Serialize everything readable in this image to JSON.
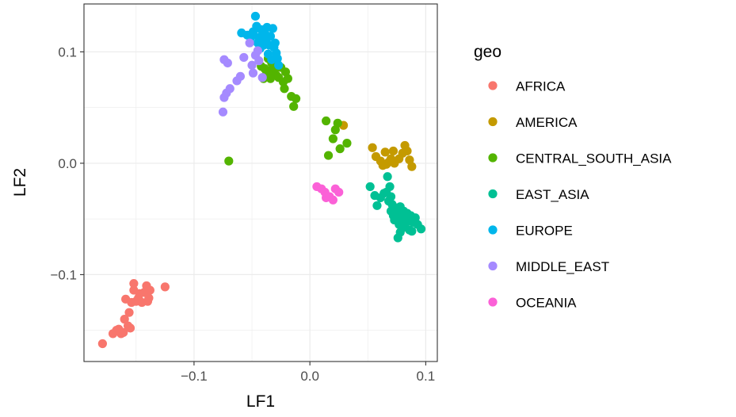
{
  "chart_data": {
    "type": "scatter",
    "title": "",
    "xlabel": "LF1",
    "ylabel": "LF2",
    "xlim": [
      -0.195,
      0.11
    ],
    "ylim": [
      -0.178,
      0.143
    ],
    "xticks": [
      -0.1,
      0.0,
      0.1
    ],
    "xtick_labels": [
      "−0.1",
      "0.0",
      "0.1"
    ],
    "yticks": [
      -0.1,
      0.0,
      0.1
    ],
    "ytick_labels": [
      "−0.1",
      "0.0",
      "0.1"
    ],
    "grid": true,
    "legend": {
      "title": "geo",
      "placement": "right"
    },
    "series": [
      {
        "name": "AFRICA",
        "color": "#F8766D",
        "points": [
          [
            -0.179,
            -0.162
          ],
          [
            -0.17,
            -0.153
          ],
          [
            -0.167,
            -0.15
          ],
          [
            -0.165,
            -0.149
          ],
          [
            -0.163,
            -0.153
          ],
          [
            -0.161,
            -0.152
          ],
          [
            -0.16,
            -0.14
          ],
          [
            -0.157,
            -0.146
          ],
          [
            -0.155,
            -0.148
          ],
          [
            -0.156,
            -0.134
          ],
          [
            -0.154,
            -0.125
          ],
          [
            -0.15,
            -0.124
          ],
          [
            -0.152,
            -0.114
          ],
          [
            -0.148,
            -0.121
          ],
          [
            -0.147,
            -0.117
          ],
          [
            -0.145,
            -0.125
          ],
          [
            -0.143,
            -0.116
          ],
          [
            -0.14,
            -0.124
          ],
          [
            -0.139,
            -0.121
          ],
          [
            -0.138,
            -0.114
          ],
          [
            -0.152,
            -0.108
          ],
          [
            -0.141,
            -0.11
          ],
          [
            -0.125,
            -0.111
          ],
          [
            -0.159,
            -0.122
          ]
        ]
      },
      {
        "name": "AMERICA",
        "color": "#C49A00",
        "points": [
          [
            0.029,
            0.034
          ],
          [
            0.054,
            0.014
          ],
          [
            0.057,
            0.006
          ],
          [
            0.061,
            0.002
          ],
          [
            0.063,
            -0.002
          ],
          [
            0.066,
            -0.001
          ],
          [
            0.068,
            0.001
          ],
          [
            0.07,
            0.004
          ],
          [
            0.073,
            0.0
          ],
          [
            0.072,
            0.011
          ],
          [
            0.077,
            0.004
          ],
          [
            0.08,
            0.009
          ],
          [
            0.082,
            0.016
          ],
          [
            0.084,
            0.011
          ],
          [
            0.086,
            0.003
          ],
          [
            0.088,
            -0.003
          ],
          [
            0.065,
            0.01
          ]
        ]
      },
      {
        "name": "CENTRAL_SOUTH_ASIA",
        "color": "#53B400",
        "points": [
          [
            -0.07,
            0.002
          ],
          [
            -0.042,
            0.087
          ],
          [
            -0.04,
            0.076
          ],
          [
            -0.038,
            0.079
          ],
          [
            -0.036,
            0.094
          ],
          [
            -0.035,
            0.083
          ],
          [
            -0.033,
            0.09
          ],
          [
            -0.031,
            0.081
          ],
          [
            -0.029,
            0.079
          ],
          [
            -0.027,
            0.077
          ],
          [
            -0.025,
            0.086
          ],
          [
            -0.023,
            0.073
          ],
          [
            -0.022,
            0.067
          ],
          [
            -0.021,
            0.082
          ],
          [
            -0.019,
            0.076
          ],
          [
            -0.016,
            0.06
          ],
          [
            -0.014,
            0.051
          ],
          [
            -0.012,
            0.058
          ],
          [
            0.014,
            0.038
          ],
          [
            0.016,
            0.007
          ],
          [
            0.02,
            0.022
          ],
          [
            0.022,
            0.03
          ],
          [
            0.024,
            0.036
          ],
          [
            0.026,
            0.013
          ],
          [
            0.032,
            0.018
          ],
          [
            -0.039,
            0.085
          ],
          [
            -0.03,
            0.085
          ],
          [
            -0.034,
            0.076
          ]
        ]
      },
      {
        "name": "EAST_ASIA",
        "color": "#00C094",
        "points": [
          [
            0.052,
            -0.021
          ],
          [
            0.056,
            -0.029
          ],
          [
            0.058,
            -0.038
          ],
          [
            0.061,
            -0.031
          ],
          [
            0.064,
            -0.027
          ],
          [
            0.066,
            -0.026
          ],
          [
            0.067,
            -0.012
          ],
          [
            0.068,
            -0.034
          ],
          [
            0.069,
            -0.021
          ],
          [
            0.07,
            -0.043
          ],
          [
            0.071,
            -0.037
          ],
          [
            0.072,
            -0.047
          ],
          [
            0.073,
            -0.051
          ],
          [
            0.074,
            -0.04
          ],
          [
            0.075,
            -0.044
          ],
          [
            0.076,
            -0.049
          ],
          [
            0.077,
            -0.055
          ],
          [
            0.078,
            -0.039
          ],
          [
            0.078,
            -0.062
          ],
          [
            0.079,
            -0.046
          ],
          [
            0.08,
            -0.051
          ],
          [
            0.081,
            -0.043
          ],
          [
            0.082,
            -0.056
          ],
          [
            0.083,
            -0.049
          ],
          [
            0.084,
            -0.045
          ],
          [
            0.085,
            -0.052
          ],
          [
            0.086,
            -0.06
          ],
          [
            0.087,
            -0.047
          ],
          [
            0.089,
            -0.053
          ],
          [
            0.091,
            -0.049
          ],
          [
            0.093,
            -0.055
          ],
          [
            0.096,
            -0.059
          ],
          [
            0.076,
            -0.067
          ],
          [
            0.08,
            -0.058
          ],
          [
            0.088,
            -0.061
          ],
          [
            0.07,
            -0.03
          ]
        ]
      },
      {
        "name": "EUROPE",
        "color": "#00B6EB",
        "points": [
          [
            -0.059,
            0.117
          ],
          [
            -0.054,
            0.115
          ],
          [
            -0.051,
            0.113
          ],
          [
            -0.049,
            0.118
          ],
          [
            -0.047,
            0.132
          ],
          [
            -0.046,
            0.123
          ],
          [
            -0.045,
            0.108
          ],
          [
            -0.044,
            0.113
          ],
          [
            -0.043,
            0.103
          ],
          [
            -0.042,
            0.12
          ],
          [
            -0.041,
            0.112
          ],
          [
            -0.04,
            0.106
          ],
          [
            -0.039,
            0.117
          ],
          [
            -0.038,
            0.11
          ],
          [
            -0.037,
            0.122
          ],
          [
            -0.036,
            0.098
          ],
          [
            -0.035,
            0.106
          ],
          [
            -0.034,
            0.114
          ],
          [
            -0.033,
            0.093
          ],
          [
            -0.032,
            0.121
          ],
          [
            -0.031,
            0.104
          ],
          [
            -0.03,
            0.108
          ],
          [
            -0.029,
            0.099
          ],
          [
            -0.028,
            0.094
          ],
          [
            -0.027,
            0.088
          ]
        ]
      },
      {
        "name": "MIDDLE_EAST",
        "color": "#A58AFF",
        "points": [
          [
            -0.075,
            0.046
          ],
          [
            -0.074,
            0.059
          ],
          [
            -0.072,
            0.063
          ],
          [
            -0.069,
            0.067
          ],
          [
            -0.074,
            0.093
          ],
          [
            -0.071,
            0.09
          ],
          [
            -0.063,
            0.074
          ],
          [
            -0.06,
            0.078
          ],
          [
            -0.057,
            0.095
          ],
          [
            -0.052,
            0.108
          ],
          [
            -0.05,
            0.088
          ],
          [
            -0.049,
            0.081
          ],
          [
            -0.047,
            0.097
          ],
          [
            -0.044,
            0.092
          ],
          [
            -0.041,
            0.077
          ],
          [
            -0.045,
            0.101
          ]
        ]
      },
      {
        "name": "OCEANIA",
        "color": "#FB61D7",
        "points": [
          [
            0.006,
            -0.021
          ],
          [
            0.01,
            -0.023
          ],
          [
            0.013,
            -0.026
          ],
          [
            0.014,
            -0.031
          ],
          [
            0.017,
            -0.03
          ],
          [
            0.02,
            -0.033
          ],
          [
            0.022,
            -0.023
          ],
          [
            0.025,
            -0.026
          ]
        ]
      }
    ]
  }
}
